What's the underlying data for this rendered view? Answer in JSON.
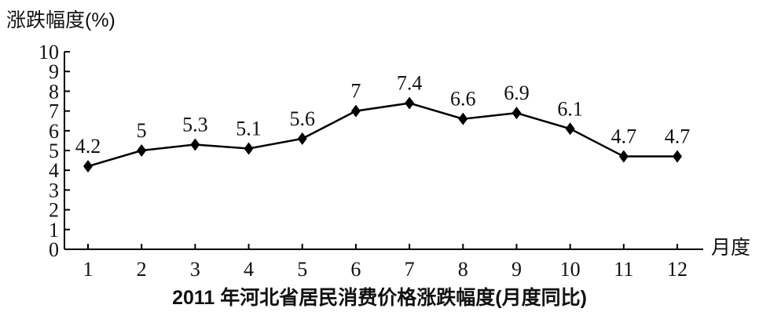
{
  "chart_data": {
    "type": "line",
    "title": "2011 年河北省居民消费价格涨跌幅度(月度同比)",
    "ylabel": "涨跌幅度(%)",
    "xlabel": "月度",
    "categories": [
      "1",
      "2",
      "3",
      "4",
      "5",
      "6",
      "7",
      "8",
      "9",
      "10",
      "11",
      "12"
    ],
    "series": [
      {
        "values": [
          4.2,
          5,
          5.3,
          5.1,
          5.6,
          7,
          7.4,
          6.6,
          6.9,
          6.1,
          4.7,
          4.7
        ],
        "labels": [
          "4.2",
          "5",
          "5.3",
          "5.1",
          "5.6",
          "7",
          "7.4",
          "6.6",
          "6.9",
          "6.1",
          "4.7",
          "4.7"
        ]
      }
    ],
    "ylim": [
      0,
      10
    ],
    "yticks": [
      "0",
      "1",
      "2",
      "3",
      "4",
      "5",
      "6",
      "7",
      "8",
      "9",
      "10"
    ],
    "grid": false,
    "marker": "diamond",
    "line_color": "#000000"
  }
}
